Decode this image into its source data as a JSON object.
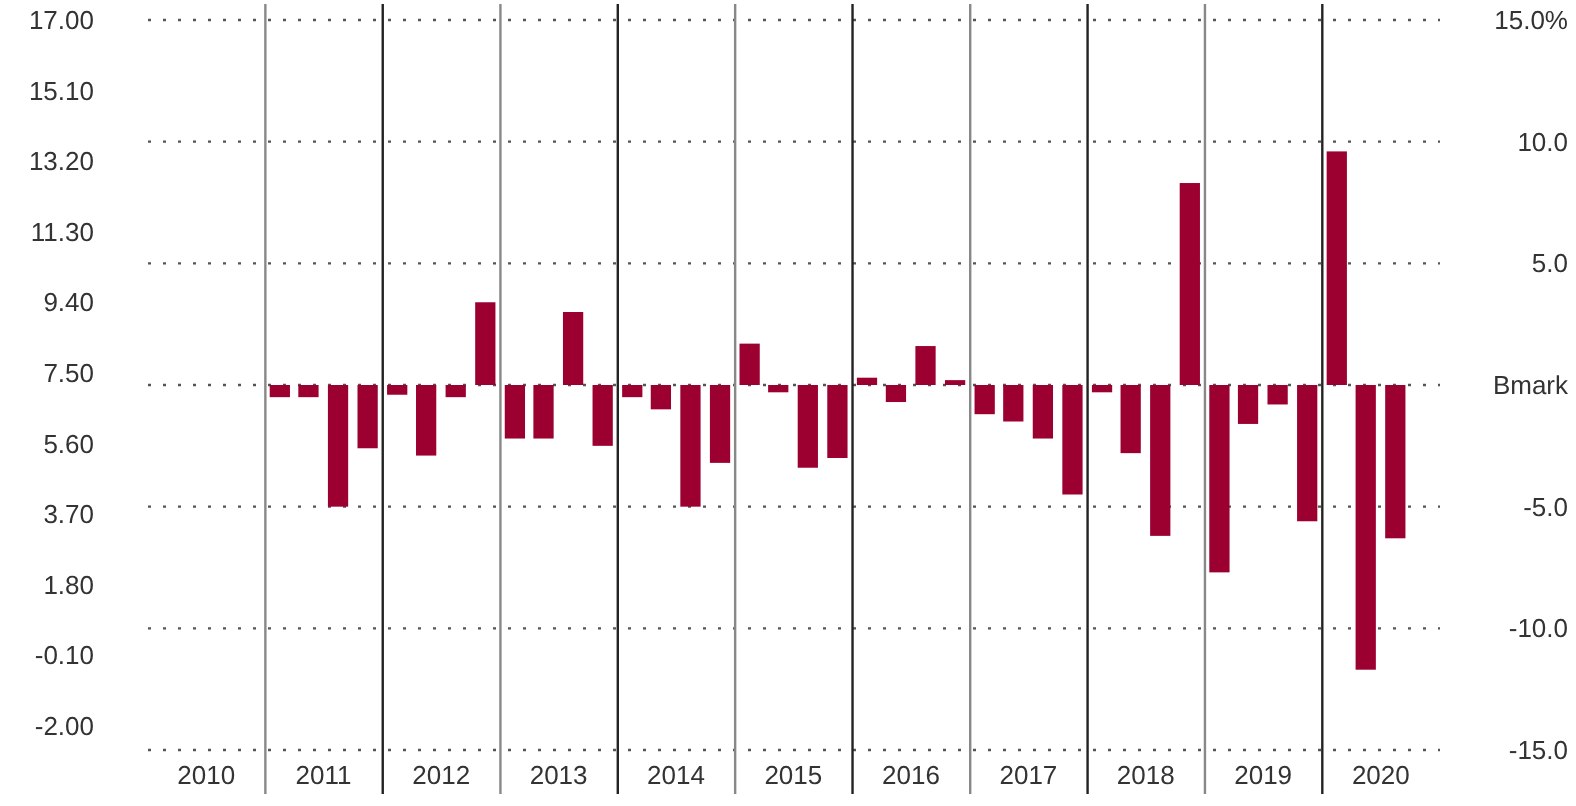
{
  "chart_data": {
    "type": "bar",
    "xlim": [
      "2010-01",
      "2021-01"
    ],
    "xticks": [
      {
        "value": "2010-07",
        "label": "2010"
      },
      {
        "value": "2011-07",
        "label": "2011"
      },
      {
        "value": "2012-07",
        "label": "2012"
      },
      {
        "value": "2013-07",
        "label": "2013"
      },
      {
        "value": "2014-07",
        "label": "2014"
      },
      {
        "value": "2015-07",
        "label": "2015"
      },
      {
        "value": "2016-07",
        "label": "2016"
      },
      {
        "value": "2017-07",
        "label": "2017"
      },
      {
        "value": "2018-07",
        "label": "2018"
      },
      {
        "value": "2019-07",
        "label": "2019"
      },
      {
        "value": "2020-07",
        "label": "2020"
      }
    ],
    "ylim": [
      -2.65,
      17
    ],
    "yticks": [
      {
        "value": 17,
        "label": "17.00"
      },
      {
        "value": 15.1,
        "label": "15.10"
      },
      {
        "value": 13.2,
        "label": "13.20"
      },
      {
        "value": 11.3,
        "label": "11.30"
      },
      {
        "value": 9.4,
        "label": "9.40"
      },
      {
        "value": 7.5,
        "label": "7.50"
      },
      {
        "value": 5.6,
        "label": "5.60"
      },
      {
        "value": 3.7,
        "label": "3.70"
      },
      {
        "value": 1.8,
        "label": "1.80"
      },
      {
        "value": -0.1,
        "label": "-0.10"
      },
      {
        "value": -2,
        "label": "-2.00"
      }
    ],
    "y2lim": [
      -15,
      15
    ],
    "y2ticks": [
      {
        "value": 15,
        "label": "15.0%"
      },
      {
        "value": 10,
        "label": "10.0"
      },
      {
        "value": 5,
        "label": "5.0"
      },
      {
        "value": 0,
        "label": "Bmark"
      },
      {
        "value": -5,
        "label": "-5.0"
      },
      {
        "value": -10,
        "label": "-10.0"
      },
      {
        "value": -15,
        "label": "-15.0"
      }
    ],
    "grid": true,
    "x": [
      "2011-02-15",
      "2011-05-15",
      "2011-08-15",
      "2011-11-15",
      "2012-02-15",
      "2012-05-15",
      "2012-08-15",
      "2012-11-15",
      "2013-02-15",
      "2013-05-15",
      "2013-08-15",
      "2013-11-15",
      "2014-02-15",
      "2014-05-15",
      "2014-08-15",
      "2014-11-15",
      "2015-02-15",
      "2015-05-15",
      "2015-08-15",
      "2015-11-15",
      "2016-02-15",
      "2016-05-15",
      "2016-08-15",
      "2016-11-15",
      "2017-02-15",
      "2017-05-15",
      "2017-08-15",
      "2017-11-15",
      "2018-02-15",
      "2018-05-15",
      "2018-08-15",
      "2018-11-15",
      "2019-02-15",
      "2019-05-15",
      "2019-08-15",
      "2019-11-15",
      "2020-02-15",
      "2020-05-15",
      "2020-08-15"
    ],
    "series": [
      {
        "color": "#9b0031",
        "axis": "y2",
        "values": [
          -0.5,
          -0.5,
          -5.0,
          -2.6,
          -0.4,
          -2.9,
          -0.5,
          3.4,
          -2.2,
          -2.2,
          3.0,
          -2.5,
          -0.5,
          -1.0,
          -5.0,
          -3.2,
          1.7,
          -0.3,
          -3.4,
          -3.0,
          0.3,
          -0.7,
          1.6,
          0.2,
          -1.2,
          -1.5,
          -2.2,
          -4.5,
          -0.3,
          -2.8,
          -6.2,
          8.3,
          -7.7,
          -1.6,
          -0.8,
          -5.6,
          9.6,
          -11.7,
          -6.3
        ]
      }
    ]
  }
}
